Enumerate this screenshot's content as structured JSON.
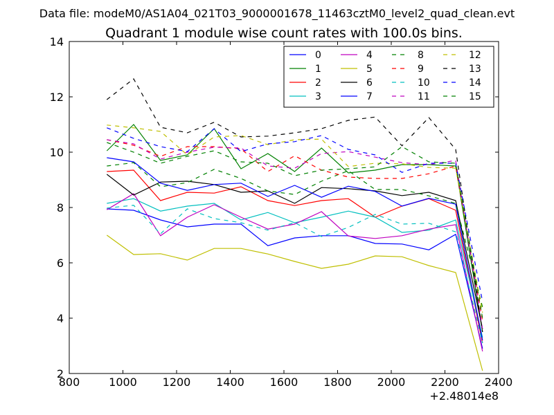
{
  "header": {
    "data_file": "Data file: modeM0/AS1A04_021T03_9000001678_11463cztM0_level2_quad_clean.evt"
  },
  "chart_data": {
    "type": "line",
    "title": "Quadrant 1 module wise count rates with 100.0s bins.",
    "xlabel": "",
    "ylabel": "",
    "x_offset_label": "+2.48014e8",
    "xlim": [
      800,
      2400
    ],
    "ylim": [
      2,
      14
    ],
    "xticks": [
      800,
      1000,
      1200,
      1400,
      1600,
      1800,
      2000,
      2200,
      2400
    ],
    "yticks": [
      2,
      4,
      6,
      8,
      10,
      12,
      14
    ],
    "xtick_labels": [
      "800",
      "1000",
      "1200",
      "1400",
      "1600",
      "1800",
      "2000",
      "2200",
      "2400"
    ],
    "ytick_labels": [
      "2",
      "4",
      "6",
      "8",
      "10",
      "12",
      "14"
    ],
    "grid": false,
    "legend_position": "top-right",
    "x": [
      940,
      1040,
      1140,
      1240,
      1340,
      1440,
      1540,
      1640,
      1740,
      1840,
      1940,
      2040,
      2140,
      2240,
      2340
    ],
    "series": [
      {
        "name": "0",
        "color": "#0000ff",
        "dash": "solid",
        "values": [
          7.95,
          7.9,
          7.55,
          7.3,
          7.4,
          7.4,
          6.62,
          6.9,
          6.98,
          6.98,
          6.7,
          6.68,
          6.47,
          7.03,
          2.9
        ]
      },
      {
        "name": "1",
        "color": "#008000",
        "dash": "solid",
        "values": [
          10.05,
          11.0,
          9.7,
          9.9,
          10.85,
          9.4,
          9.95,
          9.3,
          10.15,
          9.25,
          9.35,
          9.55,
          9.55,
          9.5,
          3.5
        ]
      },
      {
        "name": "2",
        "color": "#ff0000",
        "dash": "solid",
        "values": [
          9.3,
          9.35,
          8.25,
          8.55,
          8.52,
          8.75,
          8.25,
          8.07,
          8.25,
          8.32,
          7.65,
          8.05,
          8.32,
          7.9,
          3.1
        ]
      },
      {
        "name": "3",
        "color": "#00bfbf",
        "dash": "solid",
        "values": [
          8.15,
          8.32,
          7.87,
          8.05,
          8.15,
          7.55,
          7.82,
          7.45,
          7.65,
          7.87,
          7.65,
          7.1,
          7.18,
          7.55,
          3.3
        ]
      },
      {
        "name": "4",
        "color": "#bf00bf",
        "dash": "solid",
        "values": [
          7.92,
          8.5,
          6.98,
          7.65,
          8.1,
          7.65,
          7.22,
          7.4,
          7.85,
          6.97,
          6.88,
          6.98,
          7.22,
          7.38,
          2.8
        ]
      },
      {
        "name": "5",
        "color": "#bfbf00",
        "dash": "solid",
        "values": [
          7.0,
          6.3,
          6.33,
          6.1,
          6.52,
          6.52,
          6.32,
          6.05,
          5.8,
          5.95,
          6.25,
          6.22,
          5.9,
          5.65,
          2.1
        ]
      },
      {
        "name": "6",
        "color": "#000000",
        "dash": "solid",
        "values": [
          9.2,
          8.45,
          8.92,
          8.95,
          8.83,
          8.55,
          8.6,
          8.15,
          8.72,
          8.68,
          8.6,
          8.43,
          8.55,
          8.25,
          3.6
        ]
      },
      {
        "name": "7",
        "color": "#0000ff",
        "dash": "solid",
        "values": [
          9.8,
          9.65,
          8.88,
          8.62,
          8.83,
          8.88,
          8.4,
          8.8,
          8.37,
          8.77,
          8.58,
          8.05,
          8.33,
          8.12,
          3.2
        ]
      },
      {
        "name": "8",
        "color": "#008000",
        "dash": "dashed",
        "values": [
          9.5,
          9.62,
          8.75,
          8.9,
          9.38,
          9.05,
          8.6,
          8.47,
          8.95,
          9.33,
          8.65,
          8.65,
          8.42,
          8.15,
          4.4
        ]
      },
      {
        "name": "9",
        "color": "#ff0000",
        "dash": "dashed",
        "values": [
          10.45,
          10.25,
          9.85,
          10.2,
          10.2,
          10.12,
          9.3,
          9.87,
          9.35,
          9.1,
          9.05,
          9.05,
          9.22,
          9.5,
          3.9
        ]
      },
      {
        "name": "10",
        "color": "#00bfbf",
        "dash": "dashed",
        "values": [
          7.98,
          8.08,
          7.05,
          7.95,
          7.6,
          7.45,
          7.18,
          7.45,
          6.95,
          7.28,
          7.75,
          7.4,
          7.43,
          7.12,
          3.1
        ]
      },
      {
        "name": "11",
        "color": "#bf00bf",
        "dash": "dashed",
        "values": [
          10.45,
          10.3,
          9.75,
          10.0,
          10.18,
          10.15,
          9.5,
          9.42,
          9.95,
          10.02,
          9.82,
          9.62,
          9.55,
          9.7,
          3.6
        ]
      },
      {
        "name": "12",
        "color": "#bfbf00",
        "dash": "dashed",
        "values": [
          10.98,
          10.88,
          10.75,
          9.9,
          10.55,
          10.6,
          10.27,
          10.45,
          10.47,
          9.48,
          9.6,
          9.58,
          9.45,
          9.42,
          4.2
        ]
      },
      {
        "name": "13",
        "color": "#000000",
        "dash": "dashed",
        "values": [
          11.9,
          12.65,
          10.9,
          10.7,
          11.08,
          10.55,
          10.58,
          10.7,
          10.85,
          11.15,
          11.27,
          10.23,
          11.25,
          10.1,
          3.5
        ]
      },
      {
        "name": "14",
        "color": "#0000ff",
        "dash": "dashed",
        "values": [
          10.88,
          10.5,
          10.2,
          10.02,
          10.85,
          10.02,
          10.3,
          10.38,
          10.6,
          10.1,
          9.9,
          9.27,
          9.6,
          9.6,
          4.6
        ]
      },
      {
        "name": "15",
        "color": "#008000",
        "dash": "dashed",
        "values": [
          10.35,
          10.0,
          9.6,
          9.85,
          10.05,
          9.65,
          9.6,
          9.15,
          9.35,
          9.4,
          9.47,
          10.2,
          9.65,
          9.6,
          4.0
        ]
      }
    ]
  }
}
